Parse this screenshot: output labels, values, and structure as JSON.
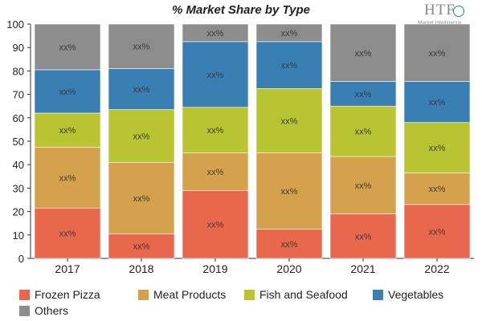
{
  "chart_data": {
    "type": "bar",
    "stacked": true,
    "title": "% Market Share by Type",
    "categories": [
      "2017",
      "2018",
      "2019",
      "2020",
      "2021",
      "2022"
    ],
    "ylim": [
      0,
      100
    ],
    "yticks": [
      0,
      10,
      20,
      30,
      40,
      50,
      60,
      70,
      80,
      90,
      100
    ],
    "grid": false,
    "legend_position": "bottom",
    "data_label": "xx%",
    "series": [
      {
        "name": "Frozen Pizza",
        "color": "#e8684e",
        "values": [
          21.5,
          10.5,
          29,
          12.5,
          19,
          23
        ]
      },
      {
        "name": "Meat Products",
        "color": "#d4a24c",
        "values": [
          26,
          30.5,
          16,
          32.5,
          24.5,
          13.5
        ]
      },
      {
        "name": "Fish and Seafood",
        "color": "#b8c432",
        "values": [
          14.5,
          22.5,
          19.5,
          27.5,
          21.5,
          21.5
        ]
      },
      {
        "name": "Vegetables",
        "color": "#3a7fb4",
        "values": [
          18.5,
          17.5,
          28,
          20,
          10.5,
          17.5
        ]
      },
      {
        "name": "Others",
        "color": "#8c8c8c",
        "values": [
          19.5,
          19,
          7.5,
          7.5,
          24.5,
          24.5
        ]
      }
    ]
  },
  "logo": {
    "mark": "HTF",
    "sub": "Market Intelligence"
  }
}
